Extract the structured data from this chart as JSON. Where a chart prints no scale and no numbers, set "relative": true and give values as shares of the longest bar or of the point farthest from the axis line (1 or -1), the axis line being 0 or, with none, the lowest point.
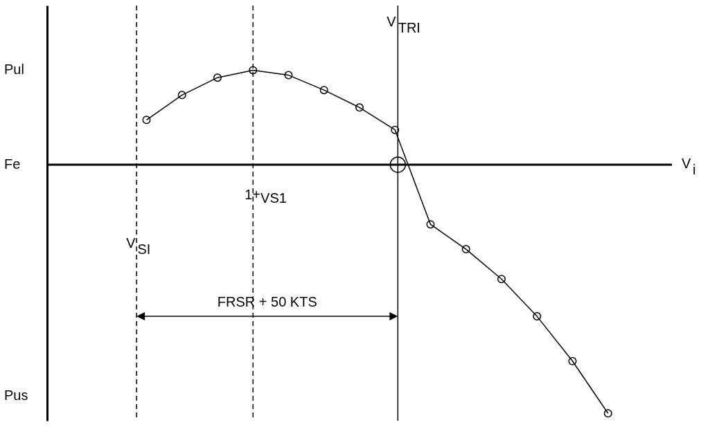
{
  "chart_data": {
    "type": "line",
    "relative": true,
    "xlabel": "V$_{i}$",
    "categories": [
      null,
      null,
      null,
      null,
      null,
      null,
      null,
      null,
      null,
      null,
      null,
      null,
      null,
      null
    ],
    "series": [
      {
        "color": "#000000",
        "values": [
          0.18,
          0.28,
          0.35,
          0.38,
          0.36,
          0.3,
          0.23,
          0.14,
          -0.24,
          -0.34,
          -0.46,
          -0.61,
          -0.79,
          -1
        ]
      }
    ],
    "marker": "circle",
    "line_style": "solid",
    "grid": false,
    "ref_lines": [
      {
        "axis": "x",
        "label": "V$_{SI}$",
        "line_style": "dashed",
        "color": "#000000"
      },
      {
        "axis": "x",
        "label": "$^{1+}$VS1",
        "line_style": "dashed",
        "color": "#000000"
      },
      {
        "axis": "x",
        "label": "V$_{TRI}$",
        "line_style": "solid",
        "color": "#000000"
      }
    ],
    "annotations": [
      "Pul",
      "Fe",
      "Pus",
      "FRSR + 50 KTS"
    ]
  }
}
